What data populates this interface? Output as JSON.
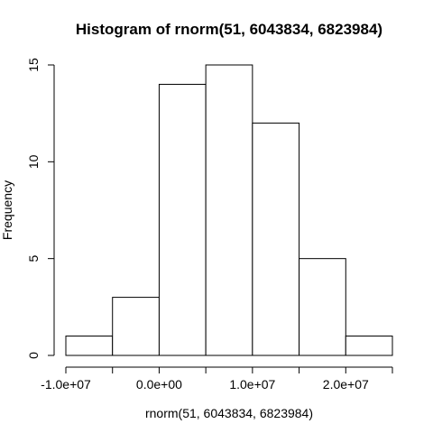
{
  "chart_data": {
    "type": "histogram",
    "title": "Histogram of rnorm(51, 6043834, 6823984)",
    "xlabel": "rnorm(51, 6043834, 6823984)",
    "ylabel": "Frequency",
    "bins": [
      {
        "start": -10000000,
        "end": -5000000,
        "count": 1
      },
      {
        "start": -5000000,
        "end": 0,
        "count": 3
      },
      {
        "start": 0,
        "end": 5000000,
        "count": 14
      },
      {
        "start": 5000000,
        "end": 10000000,
        "count": 15
      },
      {
        "start": 10000000,
        "end": 15000000,
        "count": 12
      },
      {
        "start": 15000000,
        "end": 20000000,
        "count": 5
      },
      {
        "start": 20000000,
        "end": 25000000,
        "count": 1
      }
    ],
    "xlim": [
      -10000000,
      25000000
    ],
    "ylim": [
      0,
      15
    ],
    "x_ticks": [
      -10000000,
      -5000000,
      0,
      5000000,
      10000000,
      15000000,
      20000000,
      25000000
    ],
    "x_tick_labels": [
      {
        "value": -10000000,
        "label": "-1.0e+07"
      },
      {
        "value": 0,
        "label": "0.0e+00"
      },
      {
        "value": 10000000,
        "label": "1.0e+07"
      },
      {
        "value": 20000000,
        "label": "2.0e+07"
      }
    ],
    "y_ticks": [
      0,
      5,
      10,
      15
    ],
    "y_tick_labels": [
      "0",
      "5",
      "10",
      "15"
    ],
    "grid": false
  }
}
